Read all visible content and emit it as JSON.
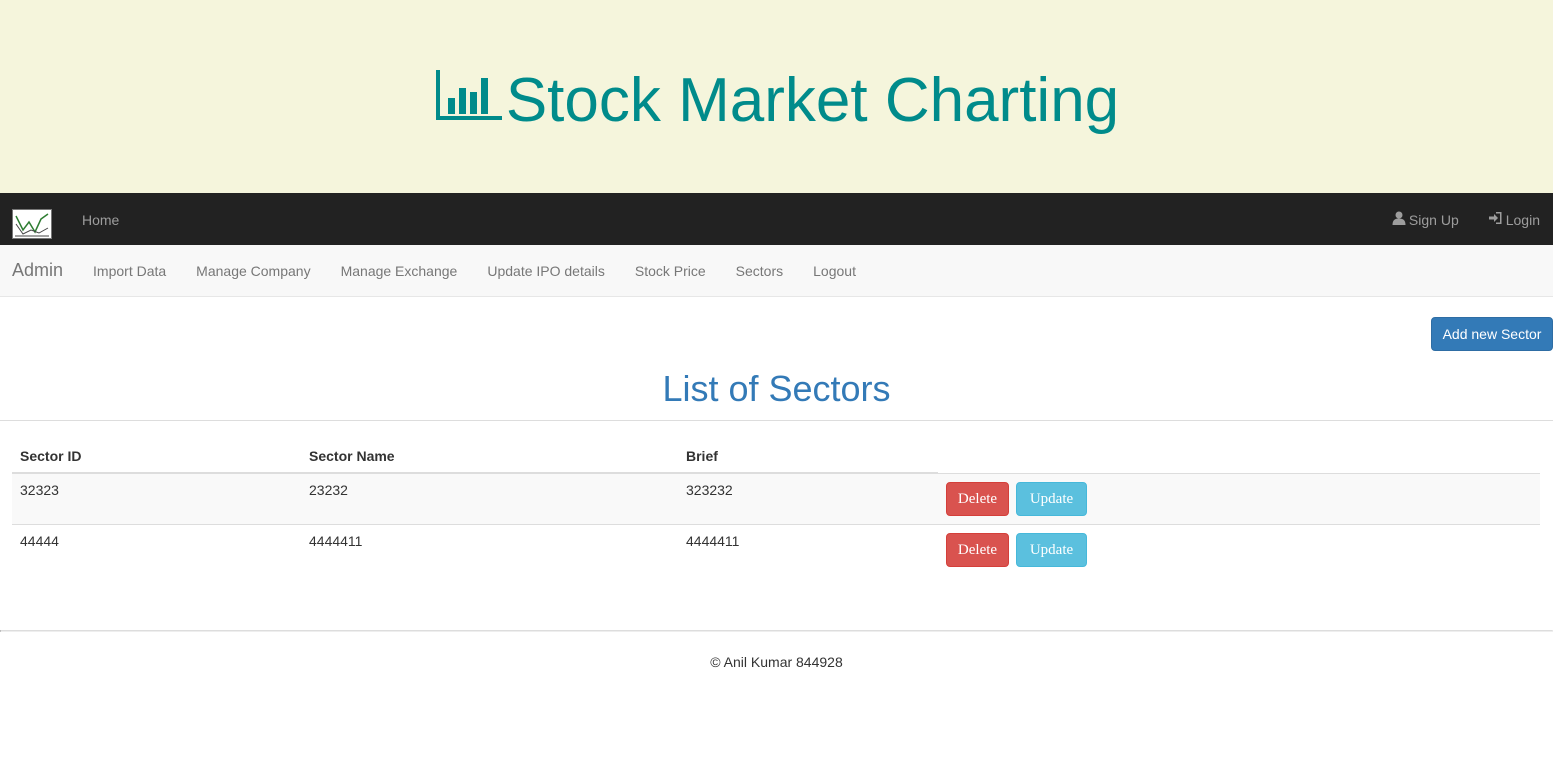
{
  "banner": {
    "title": "Stock Market Charting",
    "icon": "bar-chart-icon",
    "color": "#008b8b",
    "background": "#f5f5dc"
  },
  "topnav": {
    "logo_icon": "stock-chart-logo-icon",
    "home_label": "Home",
    "signup_label": "Sign Up",
    "login_label": "Login"
  },
  "subnav": {
    "brand": "Admin",
    "items": [
      {
        "label": "Import Data"
      },
      {
        "label": "Manage Company"
      },
      {
        "label": "Manage Exchange"
      },
      {
        "label": "Update IPO details"
      },
      {
        "label": "Stock Price"
      },
      {
        "label": "Sectors"
      },
      {
        "label": "Logout"
      }
    ]
  },
  "main": {
    "add_button_label": "Add new Sector",
    "title": "List of Sectors",
    "table": {
      "headers": [
        "Sector ID",
        "Sector Name",
        "Brief"
      ],
      "rows": [
        {
          "id": "32323",
          "name": "23232",
          "brief": "323232",
          "delete_label": "Delete",
          "update_label": "Update"
        },
        {
          "id": "44444",
          "name": "4444411",
          "brief": "4444411",
          "delete_label": "Delete",
          "update_label": "Update"
        }
      ]
    }
  },
  "footer": {
    "text": "© Anil Kumar 844928"
  }
}
